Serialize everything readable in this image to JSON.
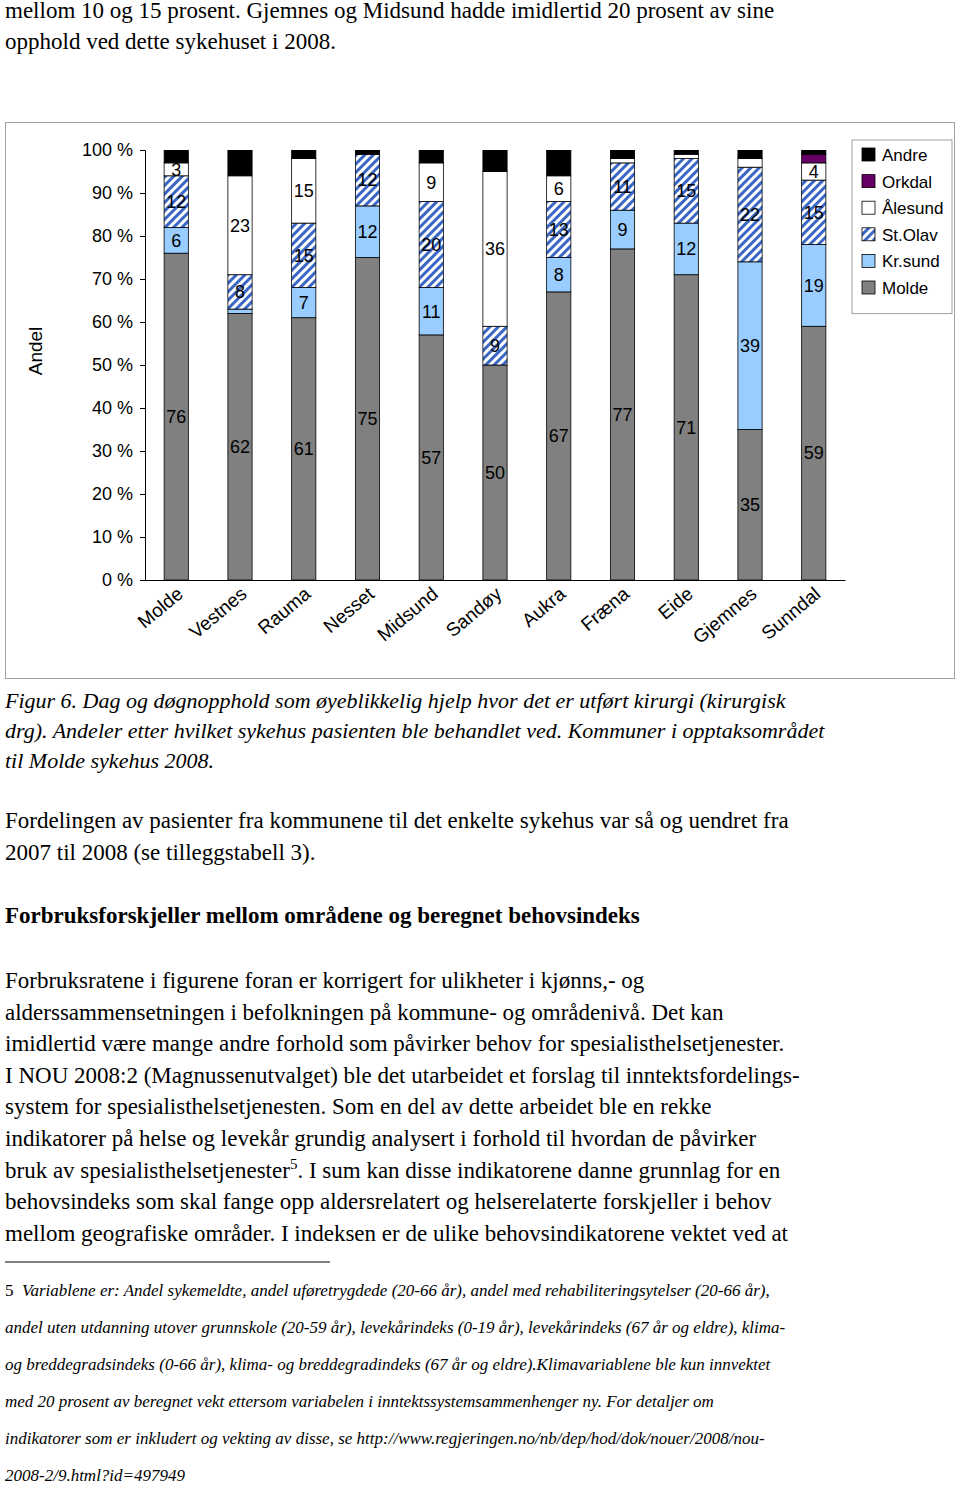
{
  "intro_lines": [
    "mellom 10 og 15 prosent. Gjemnes og Midsund hadde imidlertid 20 prosent av sine",
    "opphold ved dette sykehuset i 2008."
  ],
  "chart_data": {
    "type": "bar",
    "stacked": true,
    "data_labels": true,
    "legend": "right",
    "ylabel": "Andel",
    "categories": [
      "Molde",
      "Vestnes",
      "Rauma",
      "Nesset",
      "Midsund",
      "Sandøy",
      "Aukra",
      "Fræna",
      "Eide",
      "Gjemnes",
      "Sunndal"
    ],
    "ylim": [
      0,
      100
    ],
    "yticks": [
      {
        "value": 0,
        "label": "0 %"
      },
      {
        "value": 10,
        "label": "10 %"
      },
      {
        "value": 20,
        "label": "20 %"
      },
      {
        "value": 30,
        "label": "30 %"
      },
      {
        "value": 40,
        "label": "40 %"
      },
      {
        "value": 50,
        "label": "50 %"
      },
      {
        "value": 60,
        "label": "60 %"
      },
      {
        "value": 70,
        "label": "70 %"
      },
      {
        "value": 80,
        "label": "80 %"
      },
      {
        "value": 90,
        "label": "90 %"
      },
      {
        "value": 100,
        "label": "100 %"
      }
    ],
    "series": [
      {
        "name": "Molde",
        "color": "#808080",
        "values": [
          76,
          62,
          61,
          75,
          57,
          50,
          67,
          77,
          71,
          35,
          59
        ],
        "value_labels": [
          "76",
          "62",
          "61",
          "75",
          "57",
          "50",
          "67",
          "77",
          "71",
          "35",
          "59"
        ]
      },
      {
        "name": "Kr.sund",
        "color": "#99ccff",
        "values": [
          6,
          1,
          7,
          12,
          11,
          0,
          8,
          9,
          12,
          39,
          19
        ],
        "value_labels": [
          "6",
          null,
          "7",
          "12",
          "11",
          null,
          "8",
          "9",
          "12",
          "39",
          "19"
        ]
      },
      {
        "name": "St.Olav",
        "color": "#3a66c4",
        "marker": "hatch",
        "values": [
          12,
          8,
          15,
          12,
          20,
          9,
          13,
          11,
          15,
          22,
          15
        ],
        "value_labels": [
          "12",
          "8",
          "15",
          "12",
          "20",
          "9",
          "13",
          "11",
          "15",
          "22",
          "15"
        ]
      },
      {
        "name": "Ålesund",
        "color": "#ffffff",
        "values": [
          3,
          23,
          15,
          0,
          9,
          36,
          6,
          1,
          1,
          2,
          4
        ],
        "value_labels": [
          "3",
          "23",
          "15",
          null,
          "9",
          "36",
          "6",
          null,
          null,
          null,
          "4"
        ]
      },
      {
        "name": "Orkdal",
        "color": "#660066",
        "values": [
          0,
          0,
          0,
          0,
          0,
          0,
          0,
          0,
          0,
          0,
          2
        ],
        "value_labels": [
          null,
          null,
          null,
          null,
          null,
          null,
          null,
          null,
          null,
          null,
          null
        ]
      },
      {
        "name": "Andre",
        "color": "#000000",
        "values": [
          3,
          6,
          2,
          1,
          3,
          5,
          6,
          2,
          1,
          2,
          1
        ],
        "value_labels": [
          null,
          null,
          null,
          null,
          null,
          null,
          null,
          null,
          null,
          null,
          null
        ]
      }
    ]
  },
  "caption_lines": [
    "Figur 6. Dag og døgnopphold som øyeblikkelig hjelp hvor det er utført kirurgi (kirurgisk",
    "drg). Andeler etter hvilket sykehus pasienten ble behandlet ved. Kommuner i opptaksområdet",
    "til Molde sykehus 2008."
  ],
  "paragraph_lines": [
    "Fordelingen av pasienter fra kommunene til det enkelte sykehus var så og uendret fra",
    "2007 til 2008 (se tilleggstabell 3)."
  ],
  "heading": "Forbruksforskjeller mellom områdene og beregnet behovsindeks",
  "body_lines": [
    "Forbruksratene i figurene foran er korrigert for ulikheter i kjønns,- og",
    "alderssammensetningen  i befolkningen på kommune- og områdenivå. Det kan",
    "imidlertid være mange andre forhold som påvirker behov for spesialisthelsetjenester.",
    "I NOU 2008:2 (Magnussenutvalget) ble det utarbeidet et forslag til inntektsfordelings-",
    "system for spesialisthelsetjenesten. Som en del av dette arbeidet ble en rekke",
    "indikatorer på helse og levekår grundig analysert i forhold til hvordan de påvirker",
    {
      "before": "bruk av spesialisthelsetjenester",
      "sup": "5",
      "after": ". I sum kan disse indikatorene danne grunnlag for en"
    },
    "behovsindeks som skal fange opp aldersrelatert og helserelaterte forskjeller i behov",
    "mellom geografiske områder. I indeksen er de ulike behovsindikatorene vektet ved at"
  ],
  "footnote": {
    "number": "5",
    "lines": [
      "Variablene er: Andel sykemeldte, andel uføretrygdede (20-66 år), andel med rehabiliteringsytelser (20-66 år),",
      "andel uten utdanning utover grunnskole (20-59 år), levekårindeks (0-19 år), levekårindeks (67 år og eldre), klima-",
      "og breddegradsindeks (0-66 år), klima- og breddegradindeks (67 år og eldre).Klimavariablene ble kun innvektet",
      "med 20 prosent av beregnet vekt ettersom variabelen i inntektssystemsammenhenger ny. For detaljer om",
      "indikatorer som er inkludert og vekting av disse, se http://www.regjeringen.no/nb/dep/hod/dok/nouer/2008/nou-",
      "2008-2/9.html?id=497949"
    ]
  }
}
